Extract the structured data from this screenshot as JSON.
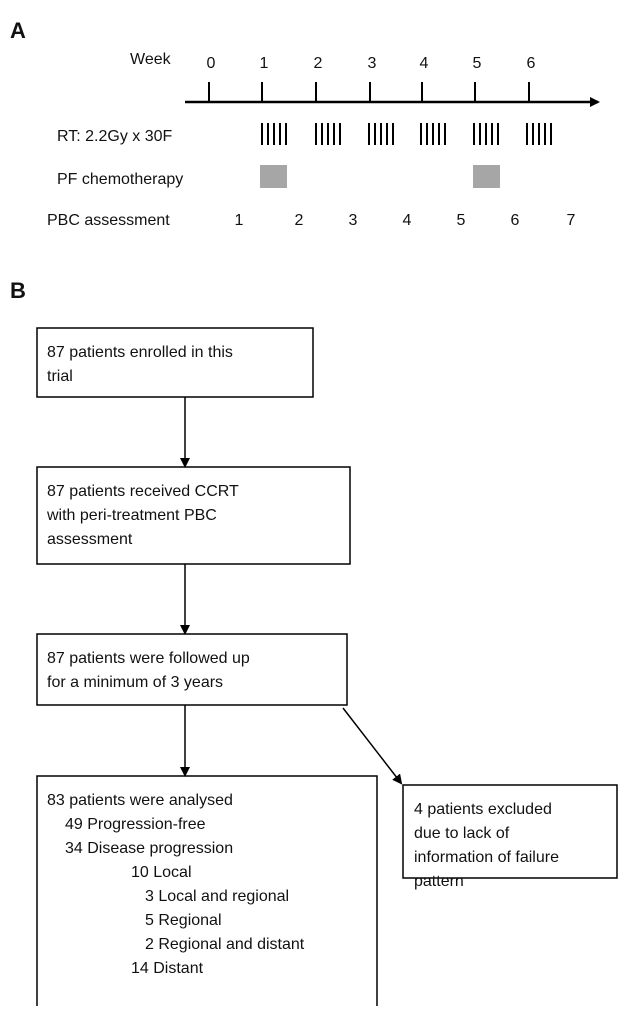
{
  "panel_a": {
    "label": "A",
    "week_title": "Week",
    "weeks": [
      "0",
      "1",
      "2",
      "3",
      "4",
      "5",
      "6"
    ],
    "rows": {
      "rt": "RT: 2.2Gy x 30F",
      "chemo": "PF chemotherapy",
      "pbc": "PBC assessment"
    },
    "pbc_points": [
      "1",
      "2",
      "3",
      "4",
      "5",
      "6",
      "7"
    ]
  },
  "panel_b": {
    "label": "B",
    "boxes": [
      {
        "lines": [
          "87 patients enrolled in this",
          "trial"
        ]
      },
      {
        "lines": [
          "87 patients received CCRT",
          "with peri-treatment PBC",
          "assessment"
        ]
      },
      {
        "lines": [
          "87 patients were followed up",
          "for a minimum of 3 years"
        ]
      },
      {
        "lines": [
          "83 patients were analysed",
          "49 Progression-free",
          "34 Disease progression",
          "10  Local",
          "3  Local and regional",
          "5  Regional",
          "2  Regional and distant",
          "14  Distant"
        ]
      },
      {
        "lines": [
          "4 patients excluded",
          "due to lack of",
          "information of failure",
          "pattern"
        ]
      }
    ]
  }
}
